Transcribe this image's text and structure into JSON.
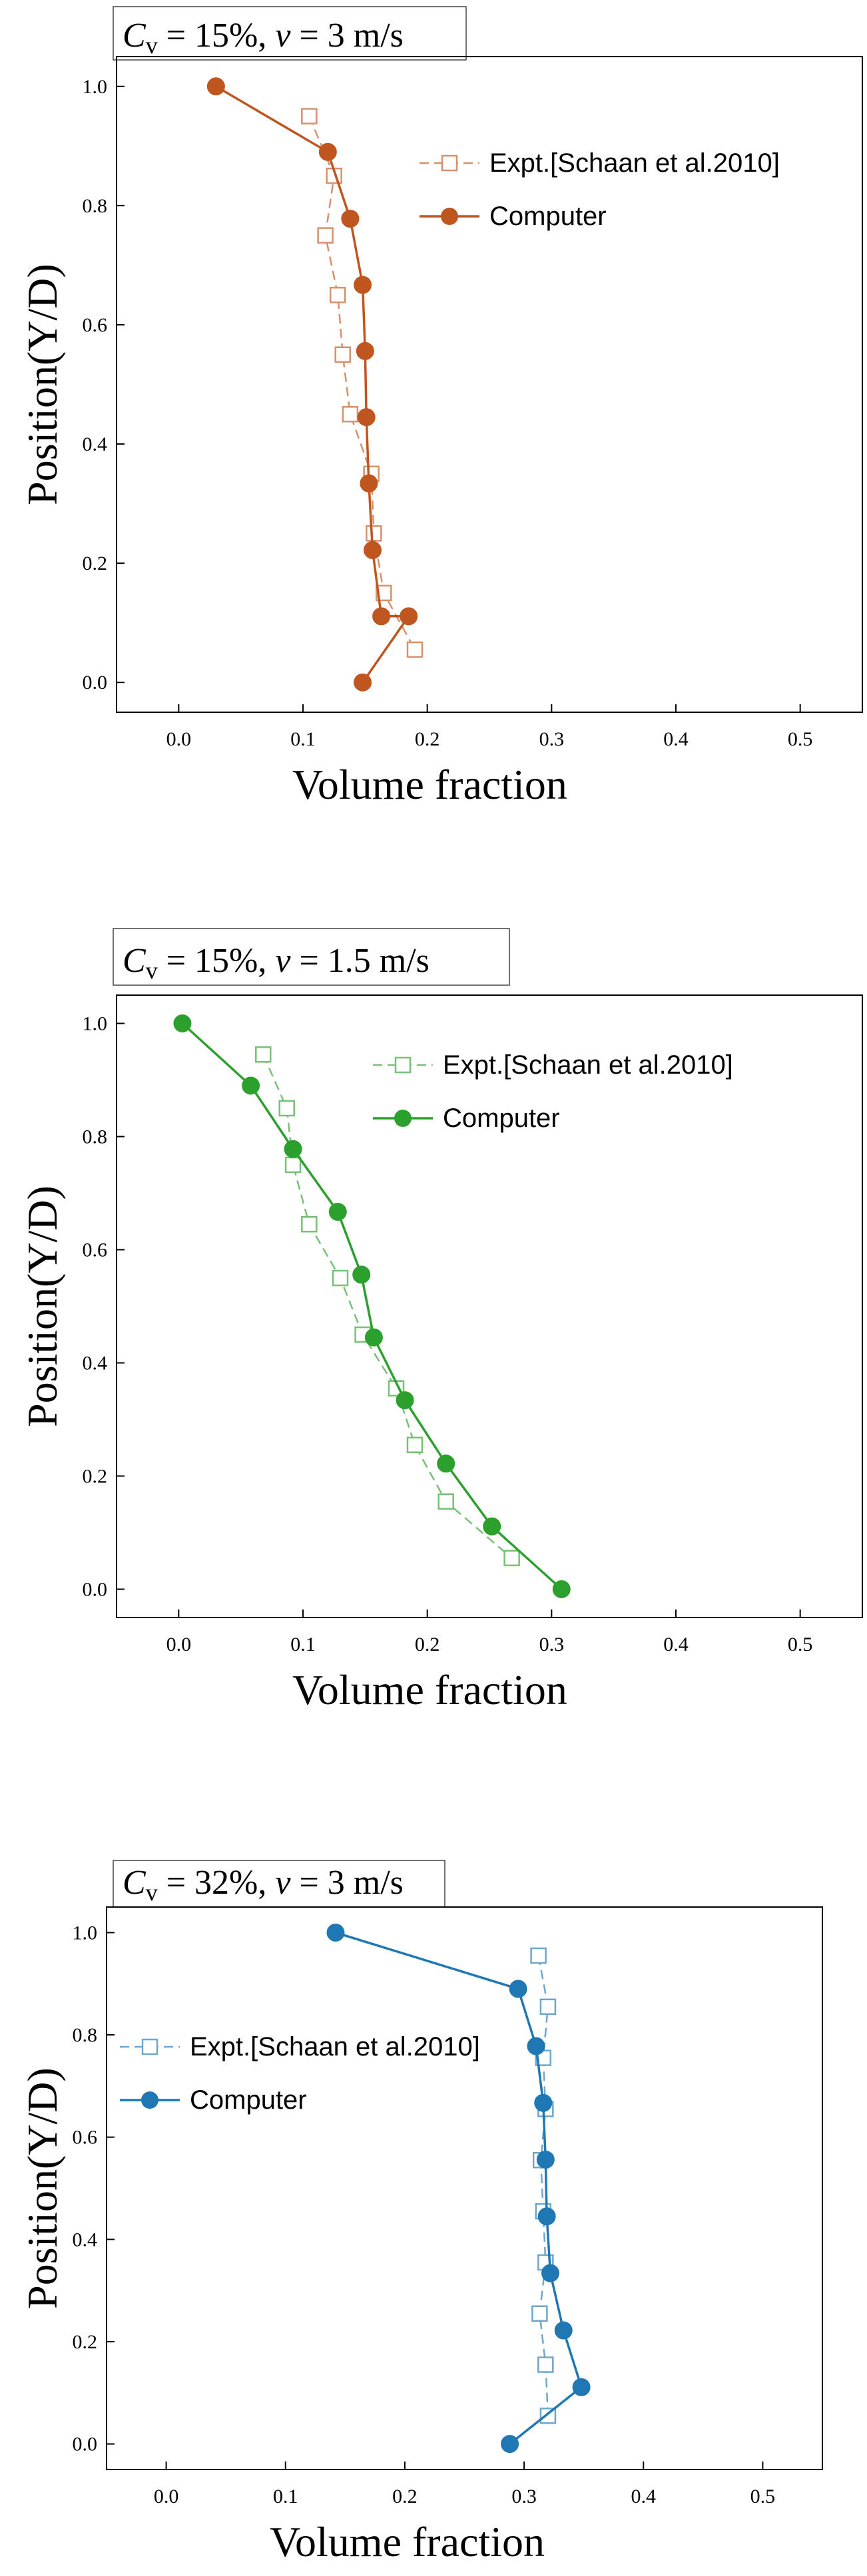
{
  "figure": {
    "shared": {
      "xlabel": "Volume fraction",
      "ylabel": "Position(Y/D)",
      "xticks": [
        "0.0",
        "0.1",
        "0.2",
        "0.3",
        "0.4",
        "0.5"
      ],
      "yticks": [
        "0.0",
        "0.2",
        "0.4",
        "0.6",
        "0.8",
        "1.0"
      ]
    }
  },
  "chart_data": [
    {
      "type": "line",
      "title_parts": {
        "var": "C",
        "sub": "v",
        "eq1": " = 15%, ",
        "var2": "v",
        "eq2": " = 3 m/s"
      },
      "xlabel": "Volume fraction",
      "ylabel": "Position(Y/D)",
      "xlim": [
        -0.05,
        0.55
      ],
      "ylim": [
        -0.05,
        1.05
      ],
      "legend": "top-right",
      "color": "#c0561f",
      "series": [
        {
          "name": "Expt.[Schaan et al.2010]",
          "style": "open-square-dashed",
          "x": [
            0.105,
            0.125,
            0.118,
            0.128,
            0.132,
            0.138,
            0.155,
            0.157,
            0.165,
            0.19
          ],
          "y": [
            0.95,
            0.85,
            0.75,
            0.65,
            0.55,
            0.45,
            0.35,
            0.25,
            0.15,
            0.055
          ]
        },
        {
          "name": "Computer",
          "style": "filled-circle-solid",
          "x": [
            0.03,
            0.12,
            0.138,
            0.148,
            0.15,
            0.151,
            0.153,
            0.156,
            0.163,
            0.185,
            0.148
          ],
          "y": [
            1.0,
            0.89,
            0.778,
            0.667,
            0.556,
            0.445,
            0.334,
            0.222,
            0.111,
            0.111,
            0.0
          ]
        }
      ]
    },
    {
      "type": "line",
      "title_parts": {
        "var": "C",
        "sub": "v",
        "eq1": " = 15%, ",
        "var2": "v",
        "eq2": " = 1.5 m/s"
      },
      "xlabel": "Volume fraction",
      "ylabel": "Position(Y/D)",
      "xlim": [
        -0.05,
        0.55
      ],
      "ylim": [
        -0.05,
        1.05
      ],
      "legend": "top-right",
      "color": "#2ca02c",
      "series": [
        {
          "name": "Expt.[Schaan et al.2010]",
          "style": "open-square-dashed",
          "x": [
            0.068,
            0.087,
            0.092,
            0.105,
            0.13,
            0.148,
            0.175,
            0.19,
            0.215,
            0.268
          ],
          "y": [
            0.945,
            0.85,
            0.75,
            0.645,
            0.55,
            0.45,
            0.355,
            0.255,
            0.155,
            0.055
          ]
        },
        {
          "name": "Computer",
          "style": "filled-circle-solid",
          "x": [
            0.003,
            0.058,
            0.092,
            0.128,
            0.147,
            0.157,
            0.182,
            0.215,
            0.252,
            0.308
          ],
          "y": [
            1.0,
            0.89,
            0.778,
            0.667,
            0.556,
            0.445,
            0.334,
            0.222,
            0.111,
            0.0
          ]
        }
      ]
    },
    {
      "type": "line",
      "title_parts": {
        "var": "C",
        "sub": "v",
        "eq1": " = 32%, ",
        "var2": "v",
        "eq2": " = 3 m/s"
      },
      "xlabel": "Volume fraction",
      "ylabel": "Position(Y/D)",
      "xlim": [
        -0.05,
        0.55
      ],
      "ylim": [
        -0.05,
        1.05
      ],
      "legend": "center-left",
      "color": "#1f77b4",
      "series": [
        {
          "name": "Expt.[Schaan et al.2010]",
          "style": "open-square-dashed",
          "x": [
            0.312,
            0.32,
            0.316,
            0.318,
            0.314,
            0.316,
            0.318,
            0.313,
            0.318,
            0.32
          ],
          "y": [
            0.955,
            0.855,
            0.755,
            0.655,
            0.555,
            0.455,
            0.355,
            0.255,
            0.155,
            0.055
          ]
        },
        {
          "name": "Computer",
          "style": "filled-circle-solid",
          "x": [
            0.142,
            0.295,
            0.31,
            0.316,
            0.318,
            0.319,
            0.322,
            0.333,
            0.348,
            0.288
          ],
          "y": [
            1.0,
            0.89,
            0.778,
            0.667,
            0.556,
            0.445,
            0.334,
            0.222,
            0.111,
            0.0
          ]
        }
      ]
    }
  ]
}
